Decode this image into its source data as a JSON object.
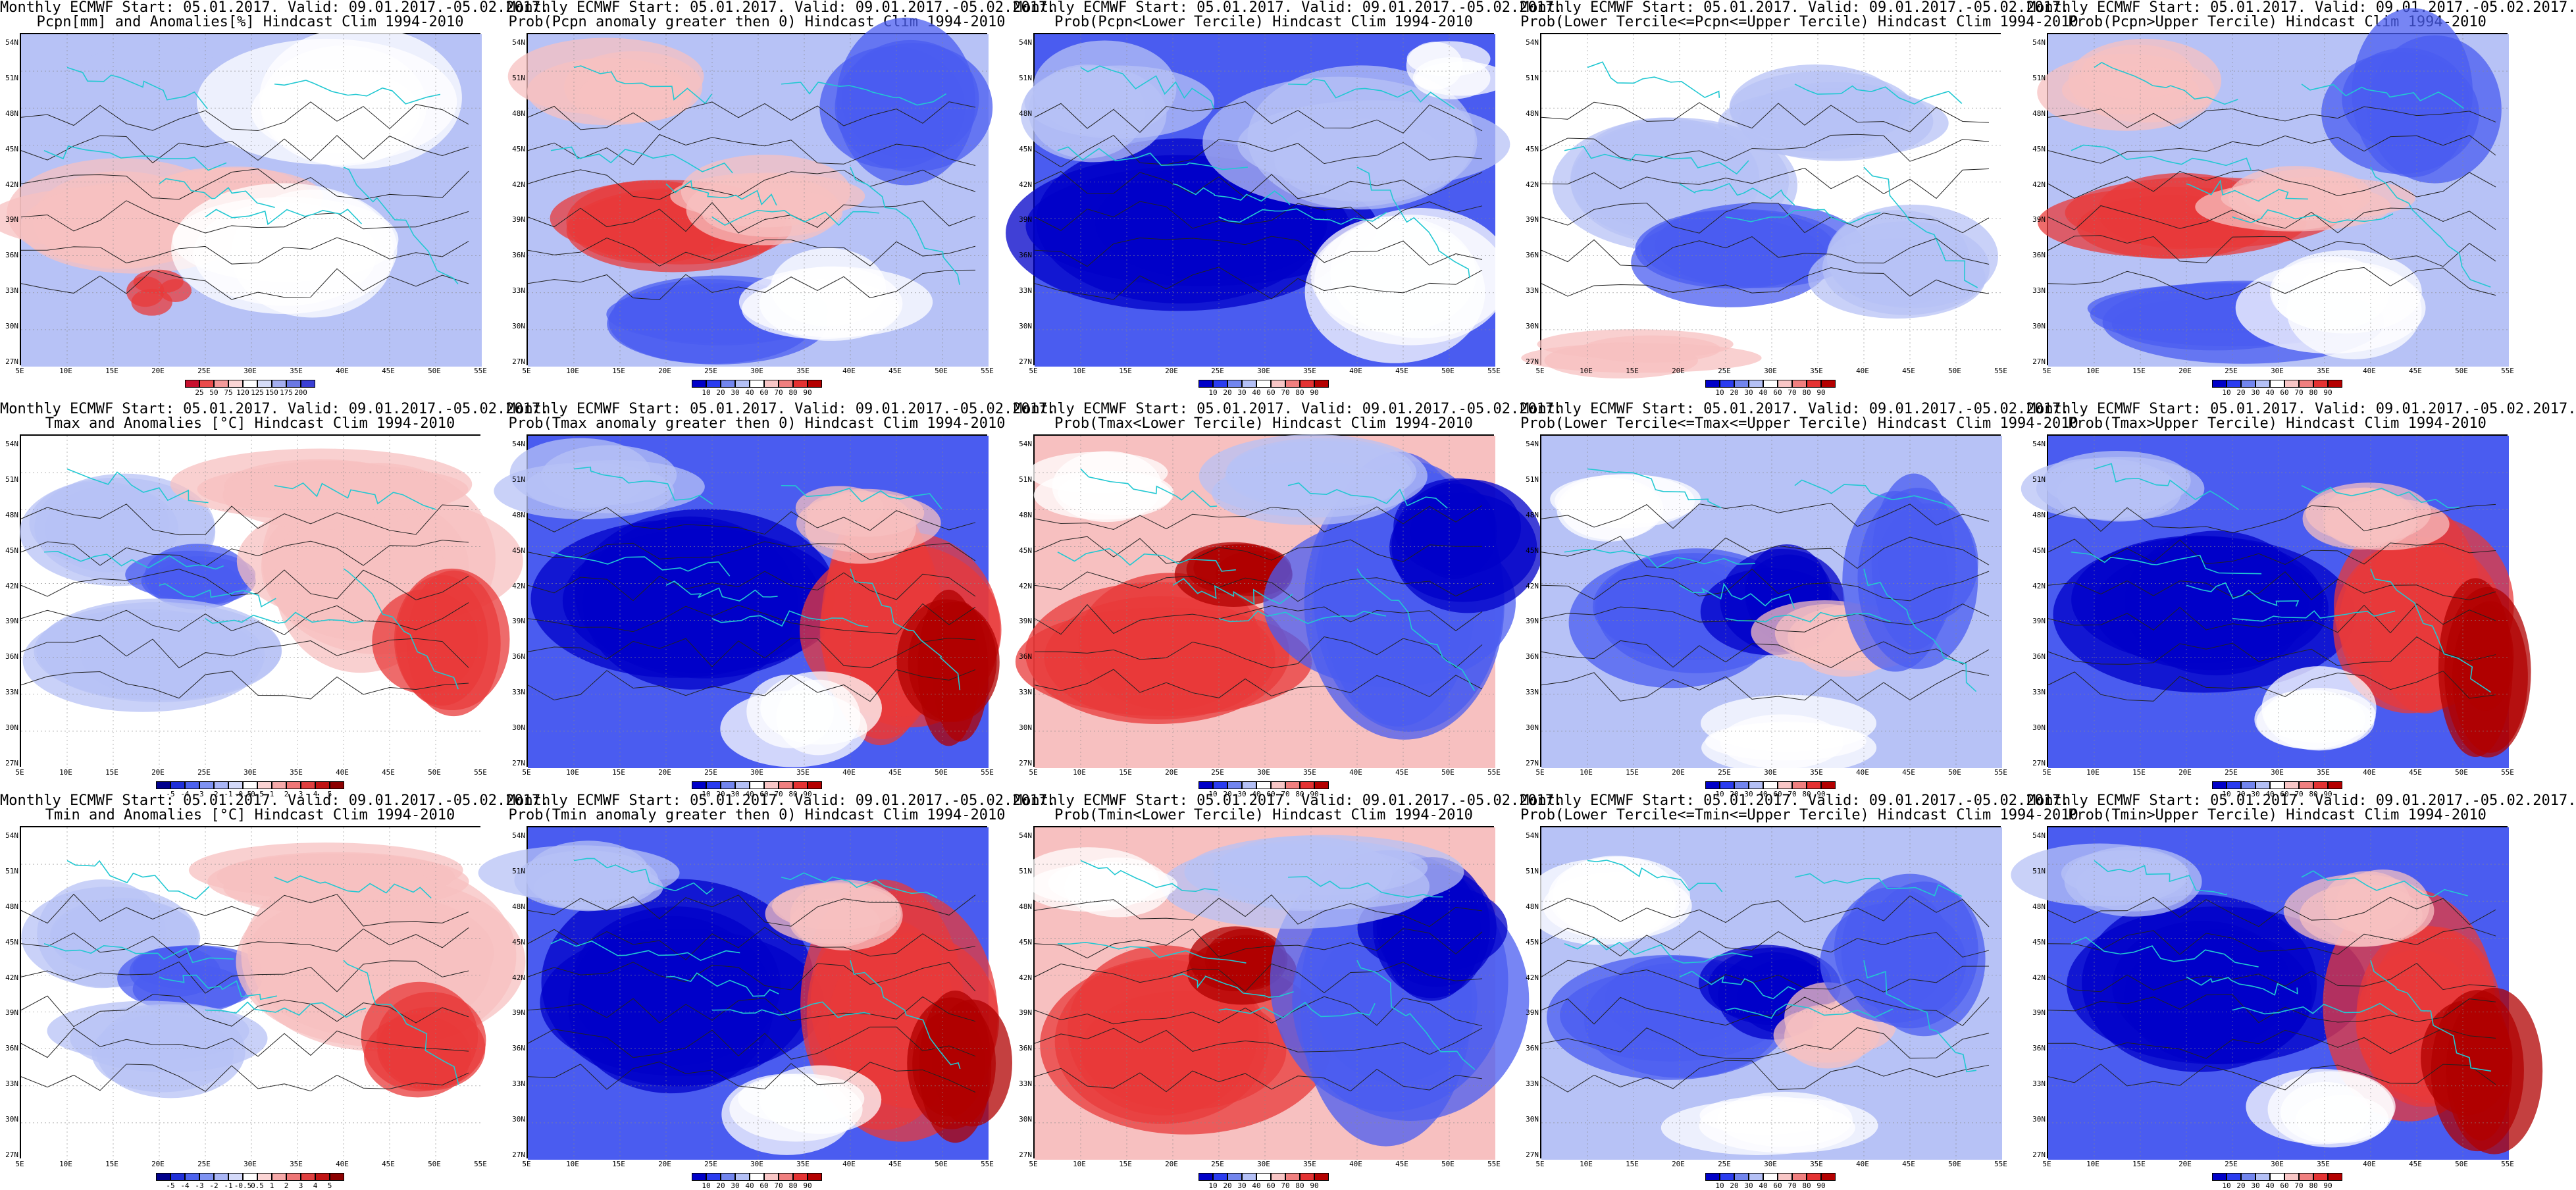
{
  "panels": [
    {
      "row": 0,
      "col": 0,
      "title1": "Monthly ECMWF Start: 05.01.2017. Valid: 09.01.2017.-05.02.2017.",
      "title2": "Pcpn[mm] and Anomalies[%] Hindcast Clim 1994-2010",
      "scale": "pcpn",
      "pattern": "pcpn"
    },
    {
      "row": 0,
      "col": 1,
      "title1": "Monthly ECMWF Start: 05.01.2017. Valid: 09.01.2017.-05.02.2017.",
      "title2": "Prob(Pcpn anomaly greater then 0) Hindcast Clim 1994-2010",
      "scale": "prob",
      "pattern": "pcpn_hi"
    },
    {
      "row": 0,
      "col": 2,
      "title1": "Monthly ECMWF Start: 05.01.2017. Valid: 09.01.2017.-05.02.2017.",
      "title2": "Prob(Pcpn<Lower Tercile) Hindcast Clim 1994-2010",
      "scale": "prob",
      "pattern": "pcpn_lo"
    },
    {
      "row": 0,
      "col": 3,
      "title1": "Monthly ECMWF Start: 05.01.2017. Valid: 09.01.2017.-05.02.2017.",
      "title2": "Prob(Lower Tercile<=Pcpn<=Upper Tercile) Hindcast Clim 1994-2010",
      "scale": "prob",
      "pattern": "pcpn_mid"
    },
    {
      "row": 0,
      "col": 4,
      "title1": "Monthly ECMWF Start: 05.01.2017. Valid: 09.01.2017.-05.02.2017.",
      "title2": "Prob(Pcpn>Upper Tercile) Hindcast Clim 1994-2010",
      "scale": "prob",
      "pattern": "pcpn_hi"
    },
    {
      "row": 1,
      "col": 0,
      "title1": "Monthly ECMWF Start: 05.01.2017. Valid: 09.01.2017.-05.02.2017.",
      "title2": "Tmax and Anomalies [°C] Hindcast Clim 1994-2010",
      "scale": "temp",
      "pattern": "tanom"
    },
    {
      "row": 1,
      "col": 1,
      "title1": "Monthly ECMWF Start: 05.01.2017. Valid: 09.01.2017.-05.02.2017.",
      "title2": "Prob(Tmax anomaly greater then 0) Hindcast Clim 1994-2010",
      "scale": "prob",
      "pattern": "thi"
    },
    {
      "row": 1,
      "col": 2,
      "title1": "Monthly ECMWF Start: 05.01.2017. Valid: 09.01.2017.-05.02.2017.",
      "title2": "Prob(Tmax<Lower Tercile) Hindcast Clim 1994-2010",
      "scale": "prob",
      "pattern": "tlo"
    },
    {
      "row": 1,
      "col": 3,
      "title1": "Monthly ECMWF Start: 05.01.2017. Valid: 09.01.2017.-05.02.2017.",
      "title2": "Prob(Lower Tercile<=Tmax<=Upper Tercile) Hindcast Clim 1994-2010",
      "scale": "prob",
      "pattern": "tmid"
    },
    {
      "row": 1,
      "col": 4,
      "title1": "Monthly ECMWF Start: 05.01.2017. Valid: 09.01.2017.-05.02.2017.",
      "title2": "Prob(Tmax>Upper Tercile) Hindcast Clim 1994-2010",
      "scale": "prob",
      "pattern": "thi"
    },
    {
      "row": 2,
      "col": 0,
      "title1": "Monthly ECMWF Start: 05.01.2017. Valid: 09.01.2017.-05.02.2017.",
      "title2": "Tmin and Anomalies [°C] Hindcast Clim 1994-2010",
      "scale": "temp",
      "pattern": "tanom"
    },
    {
      "row": 2,
      "col": 1,
      "title1": "Monthly ECMWF Start: 05.01.2017. Valid: 09.01.2017.-05.02.2017.",
      "title2": "Prob(Tmin anomaly greater then 0) Hindcast Clim 1994-2010",
      "scale": "prob",
      "pattern": "thi"
    },
    {
      "row": 2,
      "col": 2,
      "title1": "Monthly ECMWF Start: 05.01.2017. Valid: 09.01.2017.-05.02.2017.",
      "title2": "Prob(Tmin<Lower Tercile) Hindcast Clim 1994-2010",
      "scale": "prob",
      "pattern": "tlo"
    },
    {
      "row": 2,
      "col": 3,
      "title1": "Monthly ECMWF Start: 05.01.2017. Valid: 09.01.2017.-05.02.2017.",
      "title2": "Prob(Lower Tercile<=Tmin<=Upper Tercile) Hindcast Clim 1994-2010",
      "scale": "prob",
      "pattern": "tmid"
    },
    {
      "row": 2,
      "col": 4,
      "title1": "Monthly ECMWF Start: 05.01.2017. Valid: 09.01.2017.-05.02.2017.",
      "title2": "Prob(Tmin>Upper Tercile) Hindcast Clim 1994-2010",
      "scale": "prob",
      "pattern": "thi"
    }
  ],
  "axes": {
    "lat_labels": [
      "54N",
      "51N",
      "48N",
      "45N",
      "42N",
      "39N",
      "36N",
      "33N",
      "30N",
      "27N"
    ],
    "lon_labels": [
      "5E",
      "10E",
      "15E",
      "20E",
      "25E",
      "30E",
      "35E",
      "40E",
      "45E",
      "50E",
      "55E"
    ]
  },
  "scales": {
    "pcpn": {
      "labels": [
        "25",
        "50",
        "75",
        "120",
        "125",
        "150",
        "175",
        "200"
      ],
      "colors": [
        "#c8102e",
        "#ea4a4a",
        "#f49a9a",
        "#fbd6d6",
        "#ffffff",
        "#d6dcf8",
        "#a4aeef",
        "#6a78e4",
        "#3a3fd4"
      ]
    },
    "prob": {
      "labels": [
        "10",
        "20",
        "30",
        "40",
        "60",
        "70",
        "80",
        "90"
      ],
      "colors": [
        "#0000c8",
        "#2a3cf0",
        "#7285ee",
        "#b4c0f6",
        "#ffffff",
        "#f8c6c6",
        "#f07f7f",
        "#e43232",
        "#b40000"
      ]
    },
    "temp": {
      "labels": [
        "-5",
        "-4",
        "-3",
        "-2",
        "-1",
        "-0.5",
        "0.5",
        "1",
        "2",
        "3",
        "4",
        "5"
      ],
      "colors": [
        "#00008c",
        "#1f2fd8",
        "#4d63ee",
        "#7e92f2",
        "#aab6f6",
        "#d4dafa",
        "#ffffff",
        "#fbd4d4",
        "#f6a9a9",
        "#ee7676",
        "#e04040",
        "#c01414",
        "#8c0000"
      ]
    }
  },
  "palette": {
    "deep_blue": "#0000c8",
    "blue": "#4a5cf0",
    "light_blue": "#b7c2f6",
    "white": "#ffffff",
    "light_red": "#f7c0c0",
    "red": "#e83a3a",
    "deep_red": "#b00000",
    "coast": "#22c8d2",
    "contour": "#222222"
  }
}
